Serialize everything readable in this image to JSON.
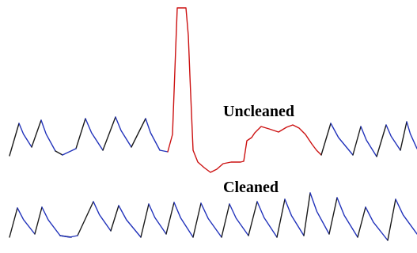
{
  "labels": {
    "uncleaned": "Uncleaned",
    "cleaned": "Cleaned"
  },
  "colors": {
    "background": "#ffffff",
    "signal_rise": "#1a1a1a",
    "signal_fall": "#2233bb",
    "artifact": "#cc1111",
    "label_text": "#000000"
  }
}
